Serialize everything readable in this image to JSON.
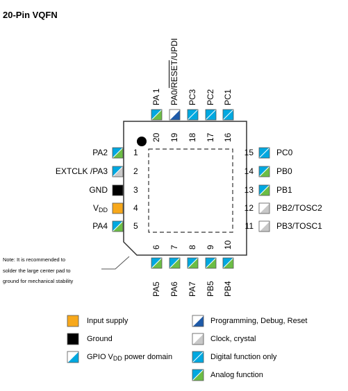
{
  "title": "20-Pin VQFN",
  "colors": {
    "input_supply": "#f7a81b",
    "ground": "#000000",
    "gpio_blue": "#00a8e0",
    "programming_blue": "#1e5aa8",
    "clock_gray": "#c8c8c8",
    "analog_green": "#6cbd45",
    "outline": "#333333"
  },
  "pins": {
    "left": [
      {
        "num": "1",
        "label": "PA2",
        "swatch": "analog"
      },
      {
        "num": "2",
        "label": "EXTCLK /PA3",
        "swatch": "analog-gray"
      },
      {
        "num": "3",
        "label": "GND",
        "swatch": "ground"
      },
      {
        "num": "4",
        "label_main": "V",
        "label_sub": "DD",
        "swatch": "supply"
      },
      {
        "num": "5",
        "label": "PA4",
        "swatch": "analog"
      }
    ],
    "bottom": [
      {
        "num": "6",
        "label": "PA5",
        "swatch": "analog"
      },
      {
        "num": "7",
        "label": "PA6",
        "swatch": "analog"
      },
      {
        "num": "8",
        "label": "PA7",
        "swatch": "analog"
      },
      {
        "num": "9",
        "label": "PB5",
        "swatch": "analog"
      },
      {
        "num": "10",
        "label": "PB4",
        "swatch": "analog"
      }
    ],
    "right": [
      {
        "num": "15",
        "label": "PC0",
        "swatch": "digital"
      },
      {
        "num": "14",
        "label": "PB0",
        "swatch": "analog"
      },
      {
        "num": "13",
        "label": "PB1",
        "swatch": "analog"
      },
      {
        "num": "12",
        "label": "PB2/TOSC2",
        "swatch": "clock"
      },
      {
        "num": "11",
        "label": "PB3/TOSC1",
        "swatch": "clock"
      }
    ],
    "top": [
      {
        "num": "20",
        "label": "PA 1",
        "swatch": "analog"
      },
      {
        "num": "19",
        "label_pre": "PA0/",
        "label_over": "RESET",
        "label_post": "/UPDI",
        "swatch": "programming"
      },
      {
        "num": "18",
        "label": "PC3",
        "swatch": "digital"
      },
      {
        "num": "17",
        "label": "PC2",
        "swatch": "digital"
      },
      {
        "num": "16",
        "label": "PC1",
        "swatch": "digital"
      }
    ]
  },
  "note": {
    "line1": "Note: It is recommended to",
    "line2": "solder the large center pad to",
    "line3": "ground for mechanical stability"
  },
  "legend": {
    "input_supply": "Input supply",
    "ground": "Ground",
    "gpio_main": "GPIO V",
    "gpio_sub": "DD",
    "gpio_rest": " power domain",
    "programming": "Programming, Debug, Reset",
    "clock": "Clock, crystal",
    "digital": "Digital function only",
    "analog": "Analog function"
  }
}
